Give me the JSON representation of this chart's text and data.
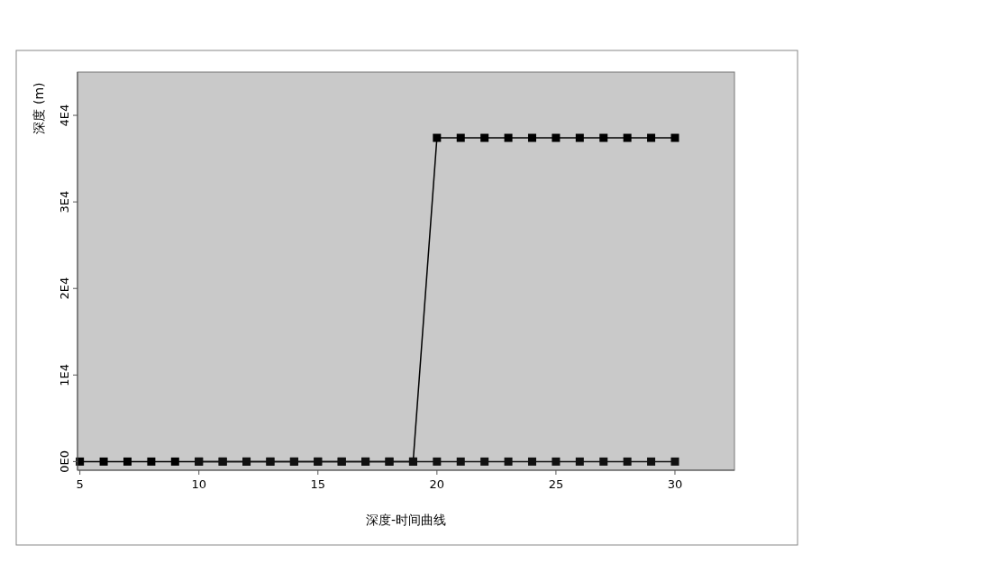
{
  "chart_data": {
    "type": "line",
    "xlabel": "深度-时间曲线",
    "ylabel": "深度 (m)",
    "xlim": [
      4.9,
      32.5
    ],
    "xticks": [
      5,
      10,
      15,
      20,
      25,
      30
    ],
    "ylim": [
      -1000,
      45000
    ],
    "yticks": [
      {
        "value": 0,
        "label": "0E0"
      },
      {
        "value": 10000,
        "label": "1E4"
      },
      {
        "value": 20000,
        "label": "2E4"
      },
      {
        "value": 30000,
        "label": "3E4"
      },
      {
        "value": 40000,
        "label": "4E4"
      }
    ],
    "marker": "square",
    "line_style": "solid",
    "series": [
      {
        "color": "#000000",
        "x": [
          5,
          6,
          7,
          8,
          9,
          10,
          11,
          12,
          13,
          14,
          15,
          16,
          17,
          18,
          19,
          20,
          21,
          22,
          23,
          24,
          25,
          26,
          27,
          28,
          29,
          30
        ],
        "values": [
          0,
          0,
          0,
          0,
          0,
          0,
          0,
          0,
          0,
          0,
          0,
          0,
          0,
          0,
          0,
          37400,
          37400,
          37400,
          37400,
          37400,
          37400,
          37400,
          37400,
          37400,
          37400,
          37400
        ]
      },
      {
        "color": "#111111",
        "x": [
          10,
          11,
          12,
          13,
          14,
          15,
          16,
          17,
          18,
          19,
          20,
          21,
          22,
          23,
          24,
          25,
          26,
          27,
          28,
          29,
          30
        ],
        "values": [
          0,
          0,
          0,
          0,
          0,
          0,
          0,
          0,
          0,
          0,
          0,
          0,
          0,
          0,
          0,
          0,
          0,
          0,
          0,
          0,
          0
        ]
      }
    ]
  }
}
